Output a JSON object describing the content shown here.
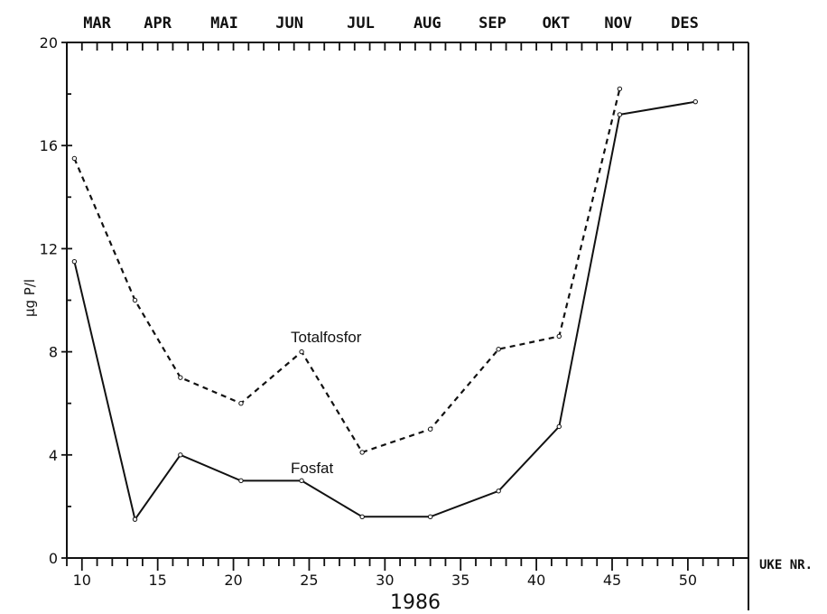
{
  "chart_data": {
    "type": "line",
    "months": [
      "MAR",
      "APR",
      "MAI",
      "JUN",
      "JUL",
      "AUG",
      "SEP",
      "OKT",
      "NOV",
      "DES"
    ],
    "month_week_centers": [
      11,
      15,
      19.4,
      23.7,
      28.4,
      32.8,
      37.1,
      41.3,
      45.4,
      49.8
    ],
    "xlim": [
      9,
      54
    ],
    "x_ticks": [
      10,
      15,
      20,
      25,
      30,
      35,
      40,
      45,
      50
    ],
    "ylim": [
      0,
      20
    ],
    "y_ticks": [
      0,
      4,
      8,
      12,
      16,
      20
    ],
    "ylabel": "µg P/l",
    "xlabel": "UKE NR.",
    "year_label": "1986",
    "series": [
      {
        "name": "Totalfosfor",
        "style": "dashed",
        "x": [
          9.5,
          13.5,
          16.5,
          20.5,
          24.5,
          28.5,
          33,
          37.5,
          41.5,
          45.5
        ],
        "y": [
          15.5,
          10.0,
          7.0,
          6.0,
          8.0,
          4.1,
          5.0,
          8.1,
          8.6,
          18.2
        ]
      },
      {
        "name": "Fosfat",
        "style": "solid",
        "x": [
          9.5,
          13.5,
          16.5,
          20.5,
          24.5,
          28.5,
          33,
          37.5,
          41.5,
          45.5,
          50.5
        ],
        "y": [
          11.5,
          1.5,
          4.0,
          3.0,
          3.0,
          1.6,
          1.6,
          2.6,
          5.1,
          17.2,
          17.7
        ]
      }
    ]
  }
}
